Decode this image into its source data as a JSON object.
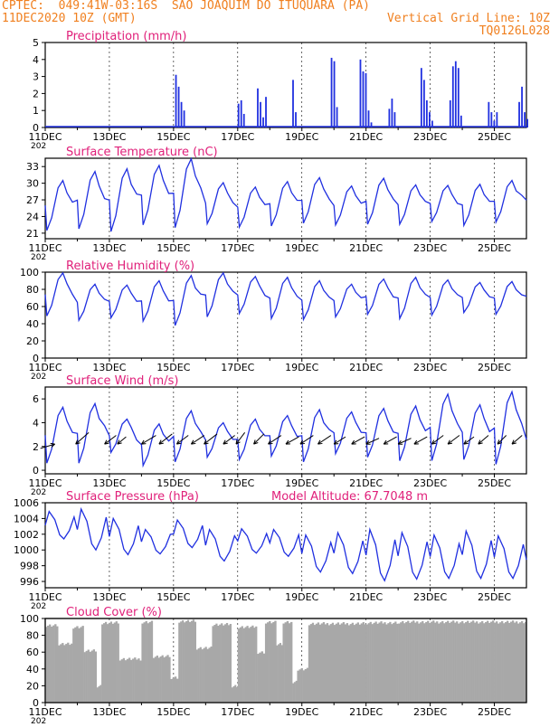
{
  "header": {
    "line1_left": "CPTEC:  049:41W-03:16S  SAO JOAQUIM DO ITUQUARA (PA)",
    "line2_left": "11DEC2020 10Z (GMT)",
    "line2_right": "Vertical Grid Line: 10Z",
    "line3_right": "TQ0126L028",
    "color": "#f08020"
  },
  "colors": {
    "title": "#e0207a",
    "series": "#2030e0",
    "cloud": "#a8a8a8",
    "axis": "#000000"
  },
  "x_axis": {
    "labels": [
      "11DEC",
      "13DEC",
      "15DEC",
      "17DEC",
      "19DEC",
      "21DEC",
      "23DEC",
      "25DEC"
    ],
    "day_start": 11,
    "day_end": 26,
    "year_fragment": "202"
  },
  "chart_data": [
    {
      "type": "bar",
      "title": "Precipitation (mm/h)",
      "ylim": [
        0,
        5
      ],
      "yticks": [
        0,
        1,
        2,
        3,
        4,
        5
      ],
      "bursts": [
        {
          "day": 15.05,
          "values": [
            3.1,
            2.4,
            1.5,
            1.0
          ]
        },
        {
          "day": 17.0,
          "values": [
            1.4,
            1.6,
            0.8
          ]
        },
        {
          "day": 17.6,
          "values": [
            2.3,
            1.5,
            0.6,
            1.8
          ]
        },
        {
          "day": 18.7,
          "values": [
            2.8,
            0.9
          ]
        },
        {
          "day": 19.9,
          "values": [
            4.1,
            3.9,
            1.2
          ]
        },
        {
          "day": 20.8,
          "values": [
            4.0,
            3.3,
            3.2,
            1.0,
            0.3
          ]
        },
        {
          "day": 21.7,
          "values": [
            1.1,
            1.7,
            0.9
          ]
        },
        {
          "day": 22.7,
          "values": [
            3.5,
            2.8,
            1.6,
            0.9,
            0.4
          ]
        },
        {
          "day": 23.6,
          "values": [
            1.6,
            3.6,
            3.9,
            3.5,
            0.7
          ]
        },
        {
          "day": 24.8,
          "values": [
            1.5,
            0.9,
            0.4,
            0.9
          ]
        },
        {
          "day": 25.75,
          "values": [
            1.5,
            2.4,
            0.9,
            0.5
          ]
        }
      ]
    },
    {
      "type": "line",
      "title": "Surface Temperature (nC)",
      "ylim": [
        20,
        34.5
      ],
      "yticks": [
        21,
        24,
        27,
        30,
        33
      ],
      "mins": [
        21.5,
        21.8,
        21.3,
        22.5,
        22.0,
        22.7,
        22.1,
        22.3,
        22.8,
        22.5,
        22.6,
        22.6,
        23.1,
        22.4,
        23.0,
        24.6
      ],
      "maxs": [
        30.5,
        32.1,
        32.6,
        33.2,
        34.4,
        30.1,
        29.3,
        30.3,
        31.0,
        29.5,
        30.9,
        29.7,
        29.6,
        29.8,
        30.5,
        29.3
      ]
    },
    {
      "type": "line",
      "title": "Relative Humidity (%)",
      "ylim": [
        0,
        100
      ],
      "yticks": [
        0,
        20,
        40,
        60,
        80,
        100
      ],
      "mins": [
        49,
        44,
        47,
        43,
        38,
        48,
        52,
        46,
        45,
        48,
        51,
        46,
        50,
        53,
        51,
        55
      ],
      "maxs": [
        99,
        86,
        85,
        90,
        96,
        99,
        95,
        94,
        90,
        86,
        92,
        94,
        91,
        88,
        89,
        89
      ]
    },
    {
      "type": "line",
      "title": "Surface Wind (m/s)",
      "ylim": [
        -0.3,
        7
      ],
      "yticks": [
        0,
        2,
        4,
        6
      ],
      "mins": [
        0.6,
        0.6,
        1.5,
        0.4,
        0.7,
        1.1,
        0.9,
        1.2,
        0.7,
        1.4,
        1.1,
        0.8,
        0.8,
        0.9,
        0.5,
        0.7
      ],
      "maxs": [
        5.3,
        5.6,
        4.3,
        3.9,
        5.0,
        4.0,
        4.3,
        4.6,
        5.1,
        4.9,
        5.2,
        5.4,
        6.4,
        5.5,
        6.6,
        4.5
      ],
      "arrows": [
        {
          "day": 11.3,
          "u": 1.0,
          "v": 0.3
        },
        {
          "day": 11.95,
          "u": -0.9,
          "v": -0.8
        },
        {
          "day": 12.85,
          "u": -0.8,
          "v": -0.6
        },
        {
          "day": 13.25,
          "u": -0.6,
          "v": -0.5
        },
        {
          "day": 14.0,
          "u": -1.0,
          "v": -0.6
        },
        {
          "day": 14.55,
          "u": -0.9,
          "v": -0.7
        },
        {
          "day": 15.1,
          "u": -0.8,
          "v": -0.6
        },
        {
          "day": 15.55,
          "u": -0.9,
          "v": -0.6
        },
        {
          "day": 15.95,
          "u": -0.9,
          "v": -0.7
        },
        {
          "day": 16.55,
          "u": -0.8,
          "v": -0.6
        },
        {
          "day": 16.95,
          "u": -0.6,
          "v": -0.8
        },
        {
          "day": 17.5,
          "u": -0.7,
          "v": -0.7
        },
        {
          "day": 17.95,
          "u": -0.9,
          "v": -0.6
        },
        {
          "day": 18.5,
          "u": -0.9,
          "v": -0.5
        },
        {
          "day": 18.95,
          "u": -0.9,
          "v": -0.6
        },
        {
          "day": 19.5,
          "u": -0.9,
          "v": -0.6
        },
        {
          "day": 20.0,
          "u": -0.8,
          "v": -0.5
        },
        {
          "day": 20.55,
          "u": -0.9,
          "v": -0.5
        },
        {
          "day": 21.0,
          "u": -0.9,
          "v": -0.4
        },
        {
          "day": 21.55,
          "u": -0.9,
          "v": -0.5
        },
        {
          "day": 22.0,
          "u": -0.9,
          "v": -0.4
        },
        {
          "day": 22.5,
          "u": -0.9,
          "v": -0.5
        },
        {
          "day": 23.05,
          "u": -0.8,
          "v": -0.6
        },
        {
          "day": 23.55,
          "u": -0.8,
          "v": -0.6
        },
        {
          "day": 24.05,
          "u": -0.7,
          "v": -0.5
        },
        {
          "day": 24.5,
          "u": -0.7,
          "v": -0.6
        },
        {
          "day": 25.1,
          "u": -0.6,
          "v": -0.6
        },
        {
          "day": 25.55,
          "u": -0.7,
          "v": -0.6
        }
      ]
    },
    {
      "type": "line",
      "title": "Surface Pressure (hPa)",
      "subtitle": "Model Altitude: 67.7048  m",
      "ylim": [
        995.2,
        1006
      ],
      "yticks": [
        996,
        998,
        1000,
        1002,
        1004,
        1006
      ],
      "maxs": [
        1004.9,
        1005.2,
        1004.0,
        1002.6,
        1003.8,
        1002.6,
        1002.7,
        1002.6,
        1001.9,
        1002.2,
        1002.6,
        1002.2,
        1001.9,
        1002.4,
        1001.8,
        1001.5
      ],
      "mins": [
        1001.4,
        1000.0,
        999.4,
        999.5,
        1000.3,
        998.6,
        999.6,
        999.2,
        997.2,
        997.0,
        996.1,
        996.3,
        996.4,
        996.4,
        996.4,
        996.0
      ]
    },
    {
      "type": "bar",
      "title": "Cloud Cover (%)",
      "ylim": [
        0,
        100
      ],
      "yticks": [
        0,
        20,
        40,
        60,
        80,
        100
      ],
      "segments": [
        [
          11.0,
          11.4,
          92
        ],
        [
          11.4,
          11.85,
          70
        ],
        [
          11.85,
          12.2,
          90
        ],
        [
          12.2,
          12.6,
          62
        ],
        [
          12.6,
          12.75,
          20
        ],
        [
          12.75,
          13.3,
          95
        ],
        [
          13.3,
          14.0,
          52
        ],
        [
          14.0,
          14.35,
          96
        ],
        [
          14.35,
          14.9,
          55
        ],
        [
          14.9,
          15.15,
          30
        ],
        [
          15.15,
          15.7,
          97
        ],
        [
          15.7,
          16.2,
          65
        ],
        [
          16.2,
          16.8,
          93
        ],
        [
          16.8,
          17.0,
          20
        ],
        [
          17.0,
          17.6,
          90
        ],
        [
          17.6,
          17.85,
          60
        ],
        [
          17.85,
          18.2,
          96
        ],
        [
          18.2,
          18.4,
          70
        ],
        [
          18.4,
          18.7,
          96
        ],
        [
          18.7,
          18.85,
          25
        ],
        [
          18.85,
          19.2,
          40
        ],
        [
          19.2,
          21.0,
          94
        ],
        [
          21.0,
          22.0,
          95
        ],
        [
          22.0,
          26.0,
          96
        ]
      ]
    }
  ]
}
